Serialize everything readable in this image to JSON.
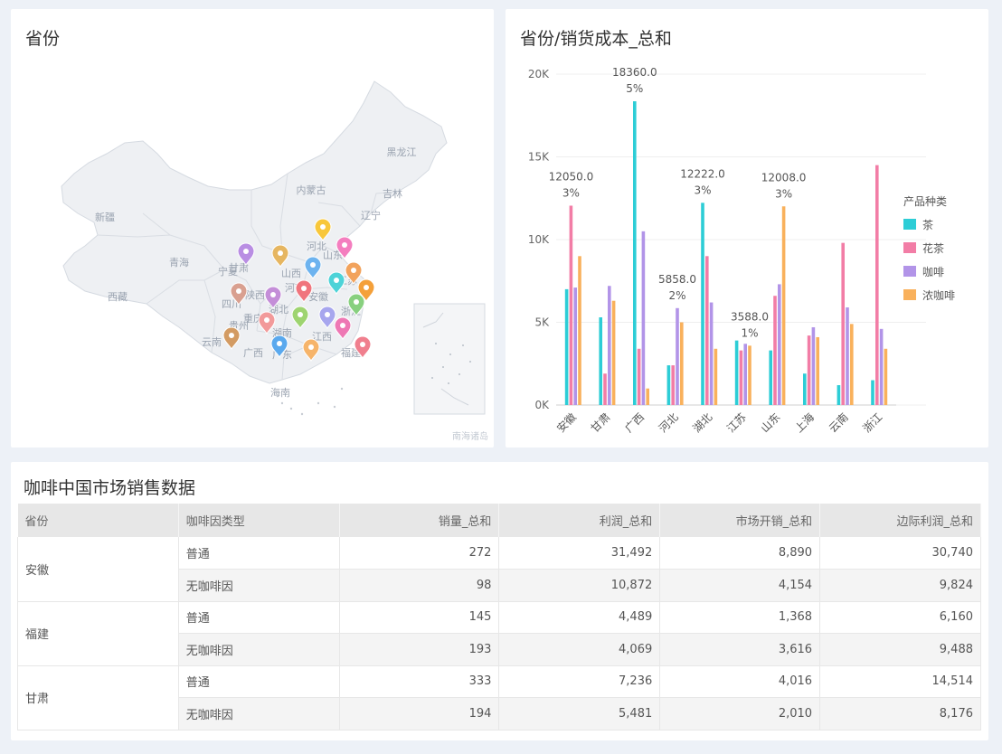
{
  "map_panel": {
    "title": "省份",
    "labels": [
      "黑龙江",
      "内蒙古",
      "吉林",
      "辽宁",
      "新疆",
      "西藏",
      "青海",
      "甘肃",
      "四川",
      "云南",
      "广东",
      "海南",
      "河北",
      "山西",
      "陕西",
      "重庆",
      "湖南",
      "江西",
      "福建",
      "浙江",
      "江苏",
      "湖北",
      "河南",
      "山东",
      "安徽",
      "广西",
      "贵州",
      "宁夏"
    ],
    "copyright": "南海诸岛"
  },
  "chart_panel": {
    "title": "省份/销货成本_总和",
    "chart_data": {
      "type": "bar",
      "categories": [
        "安徽",
        "甘肃",
        "广西",
        "河北",
        "湖北",
        "江苏",
        "山东",
        "上海",
        "云南",
        "浙江"
      ],
      "ylim": [
        0,
        20000
      ],
      "yticks": [
        {
          "value": 0,
          "label": "0K"
        },
        {
          "value": 5000,
          "label": "5K"
        },
        {
          "value": 10000,
          "label": "10K"
        },
        {
          "value": 15000,
          "label": "15K"
        },
        {
          "value": 20000,
          "label": "20K"
        }
      ],
      "legend": {
        "title": "产品种类",
        "position": "right"
      },
      "series": [
        {
          "name": "茶",
          "color": "#2dcdd6",
          "values": [
            7000,
            5300,
            18360,
            2400,
            12222,
            3900,
            3300,
            1900,
            1200,
            1500
          ]
        },
        {
          "name": "花茶",
          "color": "#f27da6",
          "values": [
            12050,
            1900,
            3400,
            2400,
            9000,
            3300,
            6600,
            4200,
            9800,
            14500
          ]
        },
        {
          "name": "咖啡",
          "color": "#b294e8",
          "values": [
            7100,
            7200,
            10500,
            5858,
            6200,
            3700,
            7300,
            4700,
            5900,
            4600
          ]
        },
        {
          "name": "浓咖啡",
          "color": "#f9b15c",
          "values": [
            9000,
            6300,
            1000,
            5000,
            3400,
            3588,
            12008,
            4100,
            4900,
            3400
          ]
        }
      ],
      "annotations": [
        {
          "category": "安徽",
          "series": 1,
          "value": "12050.0",
          "pct": "3%"
        },
        {
          "category": "广西",
          "series": 0,
          "value": "18360.0",
          "pct": "5%"
        },
        {
          "category": "河北",
          "series": 2,
          "value": "5858.0",
          "pct": "2%"
        },
        {
          "category": "湖北",
          "series": 0,
          "value": "12222.0",
          "pct": "3%"
        },
        {
          "category": "江苏",
          "series": 3,
          "value": "3588.0",
          "pct": "1%"
        },
        {
          "category": "山东",
          "series": 3,
          "value": "12008.0",
          "pct": "3%"
        }
      ]
    }
  },
  "table_panel": {
    "title": "咖啡中国市场销售数据",
    "headers": [
      "省份",
      "咖啡因类型",
      "销量_总和",
      "利润_总和",
      "市场开销_总和",
      "边际利润_总和"
    ],
    "rows": [
      {
        "province": "安徽",
        "type": "普通",
        "sales": "272",
        "profit": "31,492",
        "marketing": "8,890",
        "margin": "30,740"
      },
      {
        "province": "",
        "type": "无咖啡因",
        "sales": "98",
        "profit": "10,872",
        "marketing": "4,154",
        "margin": "9,824"
      },
      {
        "province": "福建",
        "type": "普通",
        "sales": "145",
        "profit": "4,489",
        "marketing": "1,368",
        "margin": "6,160"
      },
      {
        "province": "",
        "type": "无咖啡因",
        "sales": "193",
        "profit": "4,069",
        "marketing": "3,616",
        "margin": "9,488"
      },
      {
        "province": "甘肃",
        "type": "普通",
        "sales": "333",
        "profit": "7,236",
        "marketing": "4,016",
        "margin": "14,514"
      },
      {
        "province": "",
        "type": "无咖啡因",
        "sales": "194",
        "profit": "5,481",
        "marketing": "2,010",
        "margin": "8,176"
      }
    ]
  }
}
